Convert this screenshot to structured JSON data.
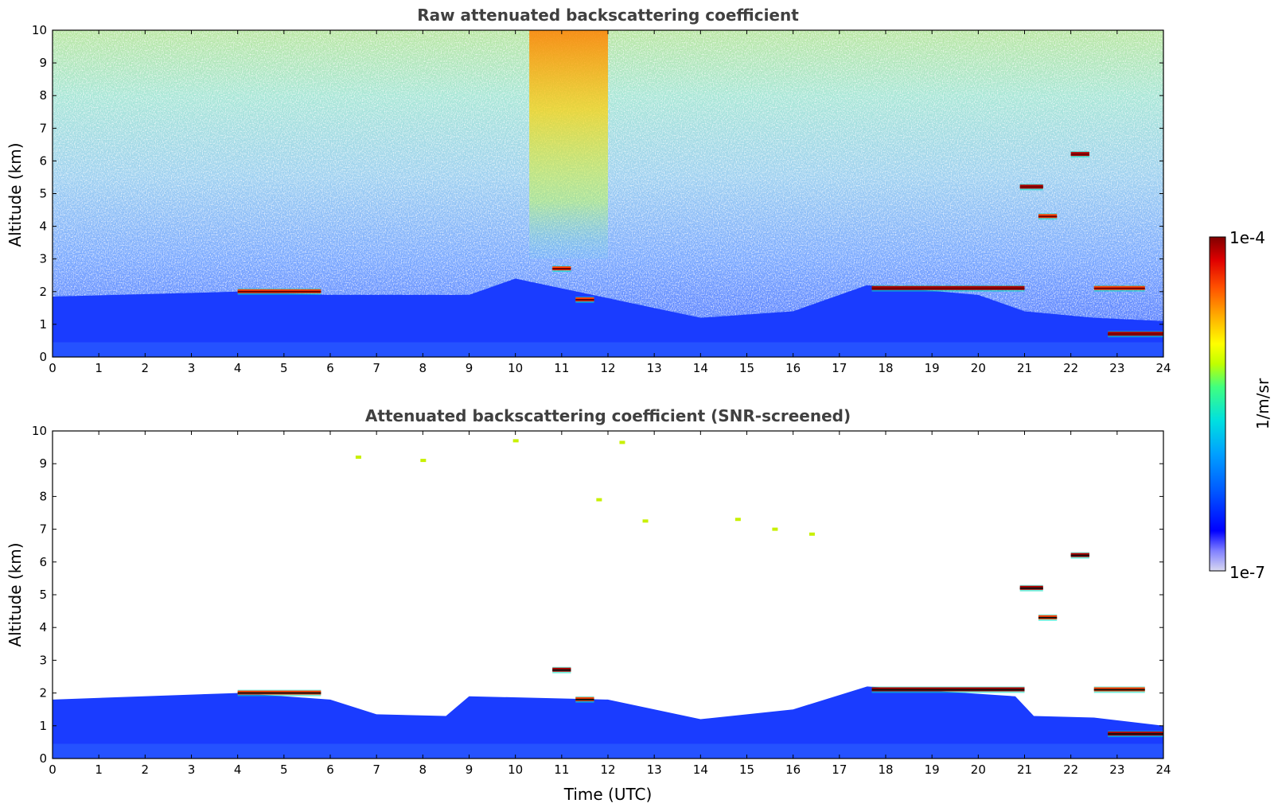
{
  "chart_data": [
    {
      "type": "heatmap",
      "title": "Raw attenuated backscattering coefficient",
      "xlabel": "",
      "ylabel": "Altitude (km)",
      "xlim": [
        0,
        24
      ],
      "ylim": [
        0,
        10
      ],
      "xticks": [
        0,
        1,
        2,
        3,
        4,
        5,
        6,
        7,
        8,
        9,
        10,
        11,
        12,
        13,
        14,
        15,
        16,
        17,
        18,
        19,
        20,
        21,
        22,
        23,
        24
      ],
      "yticks": [
        0,
        1,
        2,
        3,
        4,
        5,
        6,
        7,
        8,
        9,
        10
      ],
      "background": "noisy, increasing with altitude; green-yellow aloft, blue below ~2 km",
      "boundary_layer_top_km": [
        {
          "t": 0,
          "z": 1.85
        },
        {
          "t": 4,
          "z": 2.0
        },
        {
          "t": 6,
          "z": 1.9
        },
        {
          "t": 9,
          "z": 1.9
        },
        {
          "t": 10,
          "z": 2.4
        },
        {
          "t": 12,
          "z": 1.8
        },
        {
          "t": 14,
          "z": 1.2
        },
        {
          "t": 16,
          "z": 1.4
        },
        {
          "t": 17.6,
          "z": 2.2
        },
        {
          "t": 20,
          "z": 1.9
        },
        {
          "t": 21,
          "z": 1.4
        },
        {
          "t": 22.5,
          "z": 1.2
        },
        {
          "t": 24,
          "z": 1.1
        }
      ],
      "cloud_features": [
        {
          "t_start": 4.0,
          "t_end": 5.8,
          "z_km": 2.0,
          "level": "high"
        },
        {
          "t_start": 10.8,
          "t_end": 11.2,
          "z_km": 2.7,
          "level": "high"
        },
        {
          "t_start": 11.3,
          "t_end": 11.7,
          "z_km": 1.75,
          "level": "high"
        },
        {
          "t_start": 17.7,
          "t_end": 21.0,
          "z_km": 2.1,
          "level": "very high"
        },
        {
          "t_start": 20.9,
          "t_end": 21.4,
          "z_km": 5.2,
          "level": "very high"
        },
        {
          "t_start": 21.3,
          "t_end": 21.7,
          "z_km": 4.3,
          "level": "high"
        },
        {
          "t_start": 22.0,
          "t_end": 22.4,
          "z_km": 6.2,
          "level": "very high"
        },
        {
          "t_start": 22.5,
          "t_end": 23.6,
          "z_km": 2.1,
          "level": "high"
        },
        {
          "t_start": 22.8,
          "t_end": 24.0,
          "z_km": 0.7,
          "level": "very high"
        }
      ],
      "aerosol_plume": {
        "t_start": 10.3,
        "t_end": 12.0,
        "z_km_range": [
          3,
          10
        ],
        "level": "moderate-high"
      }
    },
    {
      "type": "heatmap",
      "title": "Attenuated backscattering coefficient (SNR-screened)",
      "xlabel": "Time (UTC)",
      "ylabel": "Altitude (km)",
      "xlim": [
        0,
        24
      ],
      "ylim": [
        0,
        10
      ],
      "xticks": [
        0,
        1,
        2,
        3,
        4,
        5,
        6,
        7,
        8,
        9,
        10,
        11,
        12,
        13,
        14,
        15,
        16,
        17,
        18,
        19,
        20,
        21,
        22,
        23,
        24
      ],
      "yticks": [
        0,
        1,
        2,
        3,
        4,
        5,
        6,
        7,
        8,
        9,
        10
      ],
      "background": "white (screened) above boundary layer",
      "boundary_layer_top_km": [
        {
          "t": 0,
          "z": 1.8
        },
        {
          "t": 4,
          "z": 2.0
        },
        {
          "t": 6,
          "z": 1.8
        },
        {
          "t": 7,
          "z": 1.35
        },
        {
          "t": 8.5,
          "z": 1.3
        },
        {
          "t": 9,
          "z": 1.9
        },
        {
          "t": 12,
          "z": 1.8
        },
        {
          "t": 14,
          "z": 1.2
        },
        {
          "t": 16,
          "z": 1.5
        },
        {
          "t": 17.6,
          "z": 2.2
        },
        {
          "t": 20.8,
          "z": 1.9
        },
        {
          "t": 21.2,
          "z": 1.3
        },
        {
          "t": 22.5,
          "z": 1.25
        },
        {
          "t": 24,
          "z": 1.0
        }
      ],
      "cloud_features": [
        {
          "t_start": 4.0,
          "t_end": 5.8,
          "z_km": 2.0,
          "level": "high"
        },
        {
          "t_start": 10.8,
          "t_end": 11.2,
          "z_km": 2.7,
          "level": "very high"
        },
        {
          "t_start": 11.3,
          "t_end": 11.7,
          "z_km": 1.8,
          "level": "high"
        },
        {
          "t_start": 17.7,
          "t_end": 21.0,
          "z_km": 2.1,
          "level": "very high"
        },
        {
          "t_start": 20.9,
          "t_end": 21.4,
          "z_km": 5.2,
          "level": "very high"
        },
        {
          "t_start": 21.3,
          "t_end": 21.7,
          "z_km": 4.3,
          "level": "high"
        },
        {
          "t_start": 22.0,
          "t_end": 22.4,
          "z_km": 6.2,
          "level": "very high"
        },
        {
          "t_start": 22.5,
          "t_end": 23.6,
          "z_km": 2.1,
          "level": "high"
        },
        {
          "t_start": 22.8,
          "t_end": 24.0,
          "z_km": 0.75,
          "level": "very high"
        }
      ],
      "scattered_high_returns": [
        {
          "t": 6.6,
          "z_km": 9.2
        },
        {
          "t": 8.0,
          "z_km": 9.1
        },
        {
          "t": 10.0,
          "z_km": 9.7
        },
        {
          "t": 12.3,
          "z_km": 9.65
        },
        {
          "t": 11.8,
          "z_km": 7.9
        },
        {
          "t": 12.8,
          "z_km": 7.25
        },
        {
          "t": 14.8,
          "z_km": 7.3
        },
        {
          "t": 15.6,
          "z_km": 7.0
        },
        {
          "t": 16.4,
          "z_km": 6.85
        }
      ]
    }
  ],
  "colorbar": {
    "label": "1/m/sr",
    "max_label": "1e-4",
    "min_label": "1e-7",
    "scale": "log",
    "colors": [
      "#d8d8f0",
      "#8080ff",
      "#0000ff",
      "#0060ff",
      "#00a0ff",
      "#00e0e0",
      "#40ff80",
      "#c0ff00",
      "#ffff00",
      "#ffb000",
      "#ff5000",
      "#e00000",
      "#800000"
    ]
  }
}
